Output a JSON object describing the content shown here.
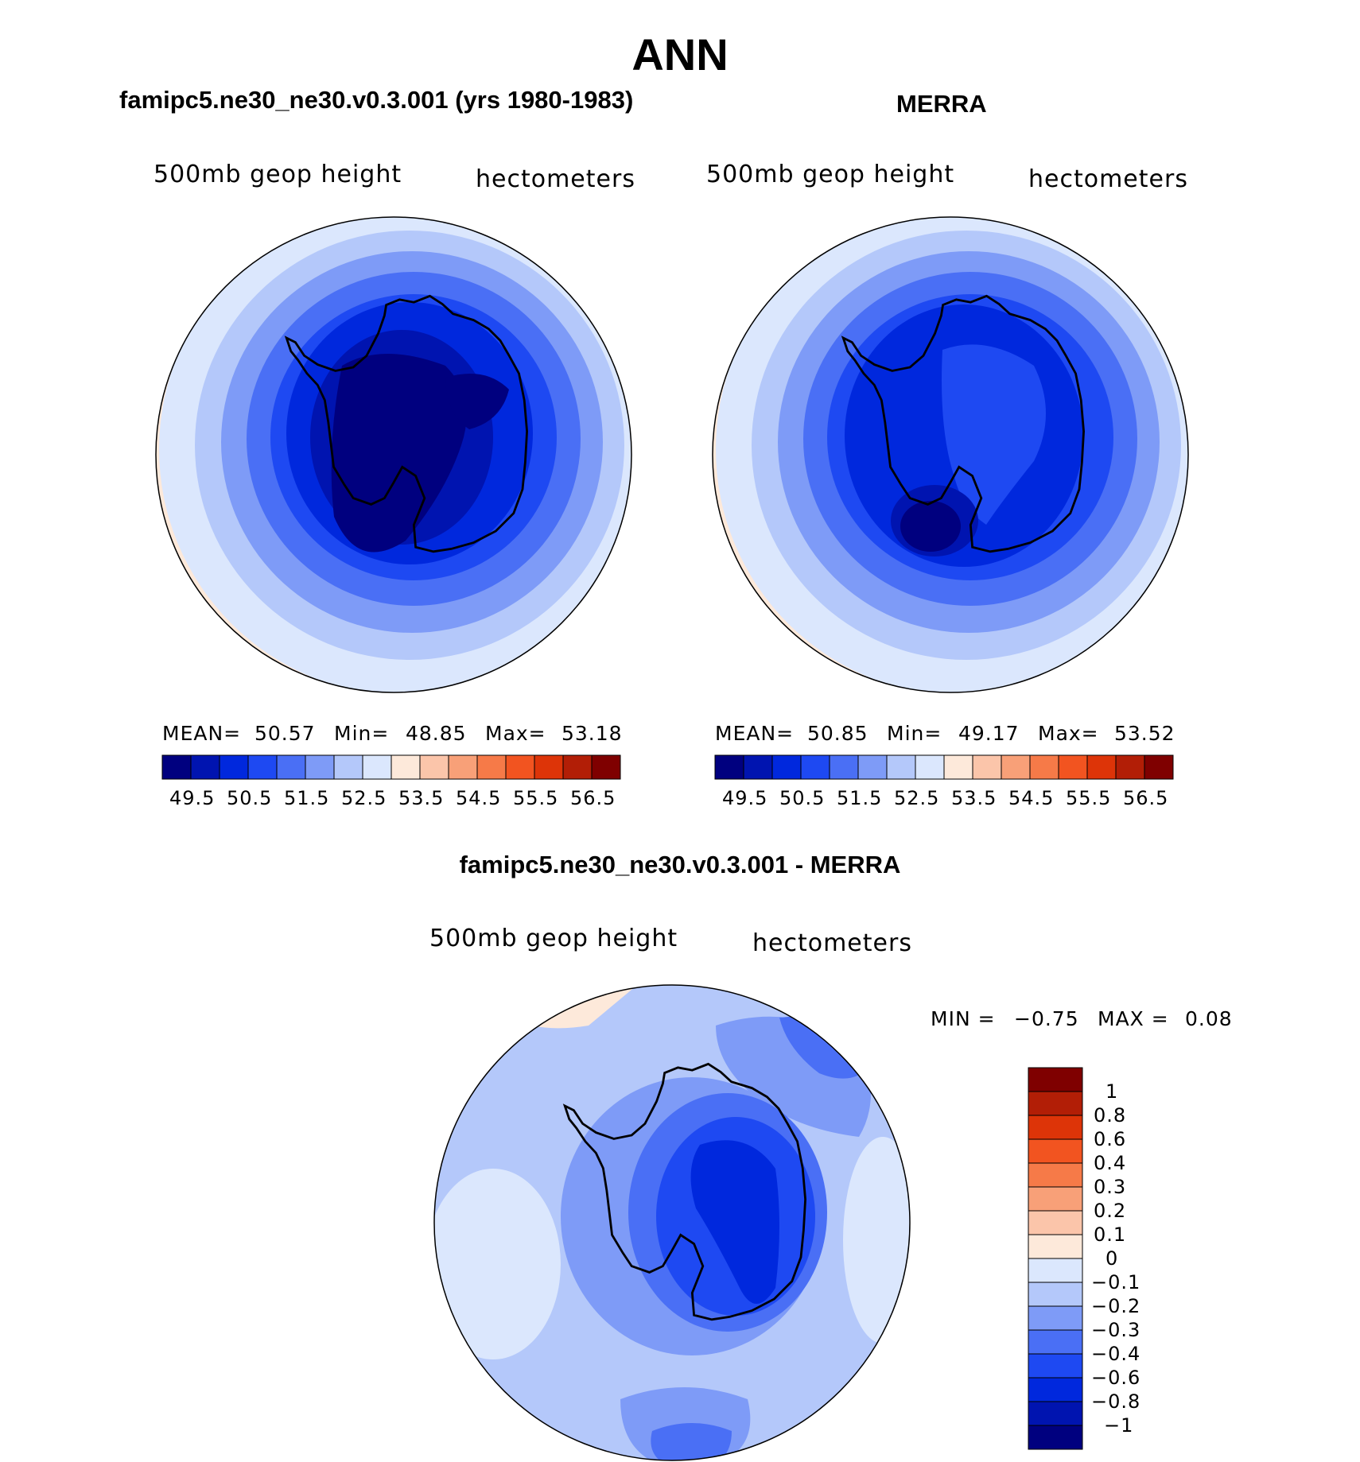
{
  "title": "ANN",
  "colors": {
    "abs_palette": [
      "#00007f",
      "#0014b0",
      "#0028dd",
      "#1e49f2",
      "#4a6ff5",
      "#7e9bf7",
      "#b4c8fa",
      "#dbe7fd",
      "#fde9da",
      "#fbc5aa",
      "#f8a078",
      "#f67a48",
      "#f25420",
      "#dd3408",
      "#b21e06",
      "#7f0000"
    ],
    "diff_palette": [
      "#00007f",
      "#0014b0",
      "#0028dd",
      "#1e49f2",
      "#4a6ff5",
      "#7e9bf7",
      "#b4c8fa",
      "#dbe7fd",
      "#fde9da",
      "#fbc5aa",
      "#f8a078",
      "#f67a48",
      "#f25420",
      "#dd3408",
      "#b21e06",
      "#7f0000"
    ]
  },
  "panels": {
    "model": {
      "heading": "famipc5.ne30_ne30.v0.3.001 (yrs 1980-1983)",
      "variable_label": "500mb geop height",
      "units_label": "hectometers",
      "stats": {
        "mean_label": "MEAN=",
        "mean": "50.57",
        "min_label": "Min=",
        "min": "48.85",
        "max_label": "Max=",
        "max": "53.18"
      },
      "colorbar_ticks": [
        "49.5",
        "50.5",
        "51.5",
        "52.5",
        "53.5",
        "54.5",
        "55.5",
        "56.5"
      ]
    },
    "obs": {
      "heading": "MERRA",
      "variable_label": "500mb geop height",
      "units_label": "hectometers",
      "stats": {
        "mean_label": "MEAN=",
        "mean": "50.85",
        "min_label": "Min=",
        "min": "49.17",
        "max_label": "Max=",
        "max": "53.52"
      },
      "colorbar_ticks": [
        "49.5",
        "50.5",
        "51.5",
        "52.5",
        "53.5",
        "54.5",
        "55.5",
        "56.5"
      ]
    },
    "diff": {
      "heading": "famipc5.ne30_ne30.v0.3.001 - MERRA",
      "variable_label": "500mb geop height",
      "units_label": "hectometers",
      "stats": {
        "min_label": "MIN =",
        "min": "−0.75",
        "max_label": "MAX =",
        "max": "0.08"
      },
      "colorbar_ticks": [
        "1",
        "0.8",
        "0.6",
        "0.4",
        "0.3",
        "0.2",
        "0.1",
        "0",
        "−0.1",
        "−0.2",
        "−0.3",
        "−0.4",
        "−0.6",
        "−0.8",
        "−1"
      ]
    }
  }
}
